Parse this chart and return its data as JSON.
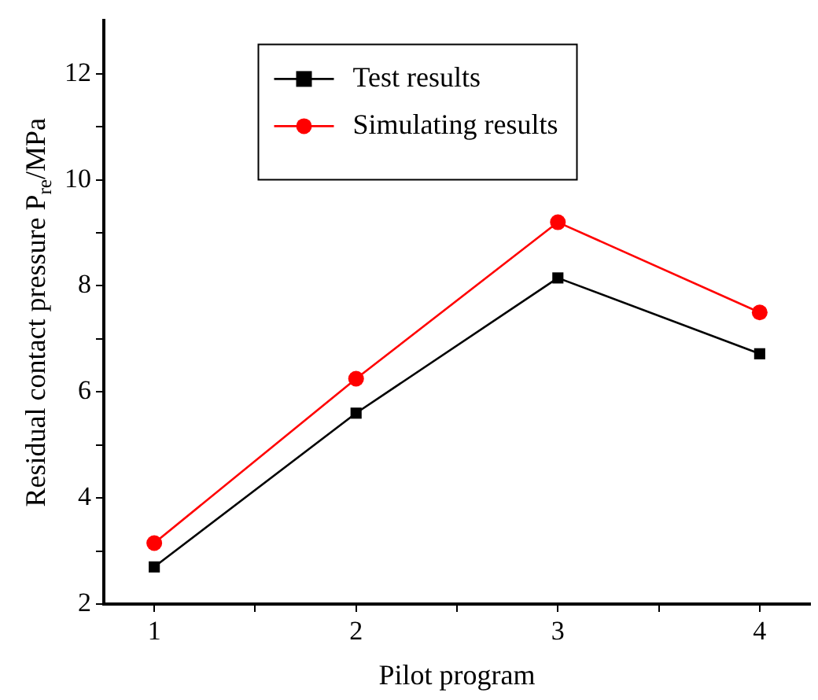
{
  "chart_data": {
    "type": "line",
    "xlabel": "Pilot program",
    "ylabel": "Residual contact pressure P$_{re}$/MPa",
    "x": [
      1,
      2,
      3,
      4
    ],
    "series": [
      {
        "name": "Test results",
        "color": "#000000",
        "marker": "square",
        "values": [
          2.7,
          5.6,
          8.15,
          6.72
        ]
      },
      {
        "name": "Simulating results",
        "color": "#ff0000",
        "marker": "circle",
        "values": [
          3.15,
          6.25,
          9.2,
          7.5
        ]
      }
    ],
    "xlim": [
      0.75,
      4.25
    ],
    "xticks": [
      1,
      {
        "value": 1.5,
        "label": null
      },
      2,
      {
        "value": 2.5,
        "label": null
      },
      3,
      {
        "value": 3.5,
        "label": null
      },
      4
    ],
    "ylim": [
      2,
      13
    ],
    "yticks": [
      2,
      {
        "value": 3,
        "label": null
      },
      4,
      {
        "value": 5,
        "label": null
      },
      6,
      {
        "value": 7,
        "label": null
      },
      8,
      {
        "value": 9,
        "label": null
      },
      10,
      {
        "value": 11,
        "label": null
      },
      12
    ],
    "grid": false,
    "legend": "top",
    "line_style": "solid"
  }
}
